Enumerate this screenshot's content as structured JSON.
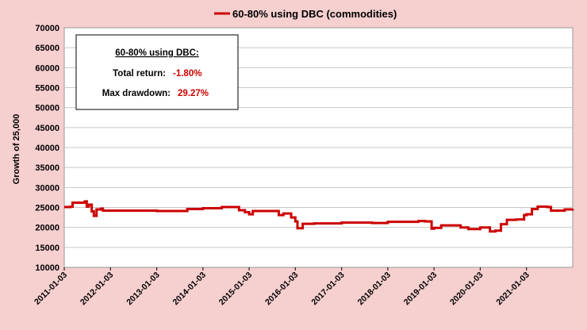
{
  "chart_data": {
    "type": "line",
    "legend": {
      "label": "60-80% using DBC  (commodities)",
      "placement": "top-center"
    },
    "ylabel": "Growth of 25,000",
    "ylim": [
      10000,
      70000
    ],
    "yticks": [
      10000,
      15000,
      20000,
      25000,
      30000,
      35000,
      40000,
      45000,
      50000,
      55000,
      60000,
      65000,
      70000
    ],
    "xlim": [
      "2011-01-03",
      "2022-01-03"
    ],
    "xticks": [
      "2011-01-03",
      "2012-01-03",
      "2013-01-03",
      "2014-01-03",
      "2015-01-03",
      "2016-01-03",
      "2017-01-03",
      "2018-01-03",
      "2019-01-03",
      "2020-01-03",
      "2021-01-03"
    ],
    "grid": "horizontal",
    "series": [
      {
        "name": "60-80% using DBC  (commodities)",
        "color": "#cc0000",
        "points": [
          [
            "2011-01-03",
            25100
          ],
          [
            "2011-02-20",
            25200
          ],
          [
            "2011-03-10",
            26200
          ],
          [
            "2011-05-25",
            26200
          ],
          [
            "2011-06-15",
            26500
          ],
          [
            "2011-06-30",
            25200
          ],
          [
            "2011-07-15",
            25700
          ],
          [
            "2011-08-08",
            24000
          ],
          [
            "2011-08-25",
            22900
          ],
          [
            "2011-09-15",
            24500
          ],
          [
            "2011-10-20",
            24700
          ],
          [
            "2011-11-05",
            24200
          ],
          [
            "2012-01-03",
            24200
          ],
          [
            "2012-06-01",
            24200
          ],
          [
            "2012-12-01",
            24200
          ],
          [
            "2013-01-03",
            24100
          ],
          [
            "2013-06-01",
            24100
          ],
          [
            "2013-09-01",
            24600
          ],
          [
            "2014-01-03",
            24800
          ],
          [
            "2014-04-01",
            24800
          ],
          [
            "2014-06-01",
            25100
          ],
          [
            "2014-09-01",
            25100
          ],
          [
            "2014-10-15",
            24300
          ],
          [
            "2014-12-01",
            23800
          ],
          [
            "2015-01-03",
            23300
          ],
          [
            "2015-02-01",
            24100
          ],
          [
            "2015-06-01",
            24100
          ],
          [
            "2015-08-25",
            23100
          ],
          [
            "2015-10-01",
            23500
          ],
          [
            "2015-12-01",
            22500
          ],
          [
            "2016-01-03",
            21500
          ],
          [
            "2016-01-20",
            19800
          ],
          [
            "2016-03-01",
            20900
          ],
          [
            "2016-06-01",
            21000
          ],
          [
            "2016-10-01",
            21000
          ],
          [
            "2017-01-03",
            21200
          ],
          [
            "2017-06-01",
            21200
          ],
          [
            "2017-09-01",
            21100
          ],
          [
            "2018-01-03",
            21400
          ],
          [
            "2018-06-01",
            21400
          ],
          [
            "2018-09-01",
            21600
          ],
          [
            "2018-10-25",
            21500
          ],
          [
            "2018-12-15",
            19700
          ],
          [
            "2019-01-03",
            19900
          ],
          [
            "2019-03-01",
            20500
          ],
          [
            "2019-06-01",
            20500
          ],
          [
            "2019-08-01",
            20000
          ],
          [
            "2019-10-01",
            19600
          ],
          [
            "2020-01-03",
            20000
          ],
          [
            "2020-03-01",
            20000
          ],
          [
            "2020-03-20",
            19000
          ],
          [
            "2020-05-01",
            19200
          ],
          [
            "2020-06-15",
            20800
          ],
          [
            "2020-08-01",
            21900
          ],
          [
            "2020-10-15",
            22000
          ],
          [
            "2020-12-15",
            23100
          ],
          [
            "2021-01-03",
            23300
          ],
          [
            "2021-02-15",
            24600
          ],
          [
            "2021-04-01",
            25200
          ],
          [
            "2021-06-15",
            25100
          ],
          [
            "2021-07-15",
            24200
          ],
          [
            "2021-09-15",
            24200
          ],
          [
            "2021-11-01",
            24500
          ],
          [
            "2022-01-03",
            24600
          ]
        ]
      }
    ]
  },
  "stats_box": {
    "heading": "60-80% using DBC:",
    "total_return_label": "Total return:",
    "total_return_value": "-1.80%",
    "max_drawdown_label": "Max drawdown:",
    "max_drawdown_value": "29.27%",
    "value_color": "#cc0000"
  },
  "colors": {
    "background": "#f6cfcf",
    "plot_area": "#ffffff",
    "grid": "#c8c8c8",
    "line": "#cc0000"
  }
}
